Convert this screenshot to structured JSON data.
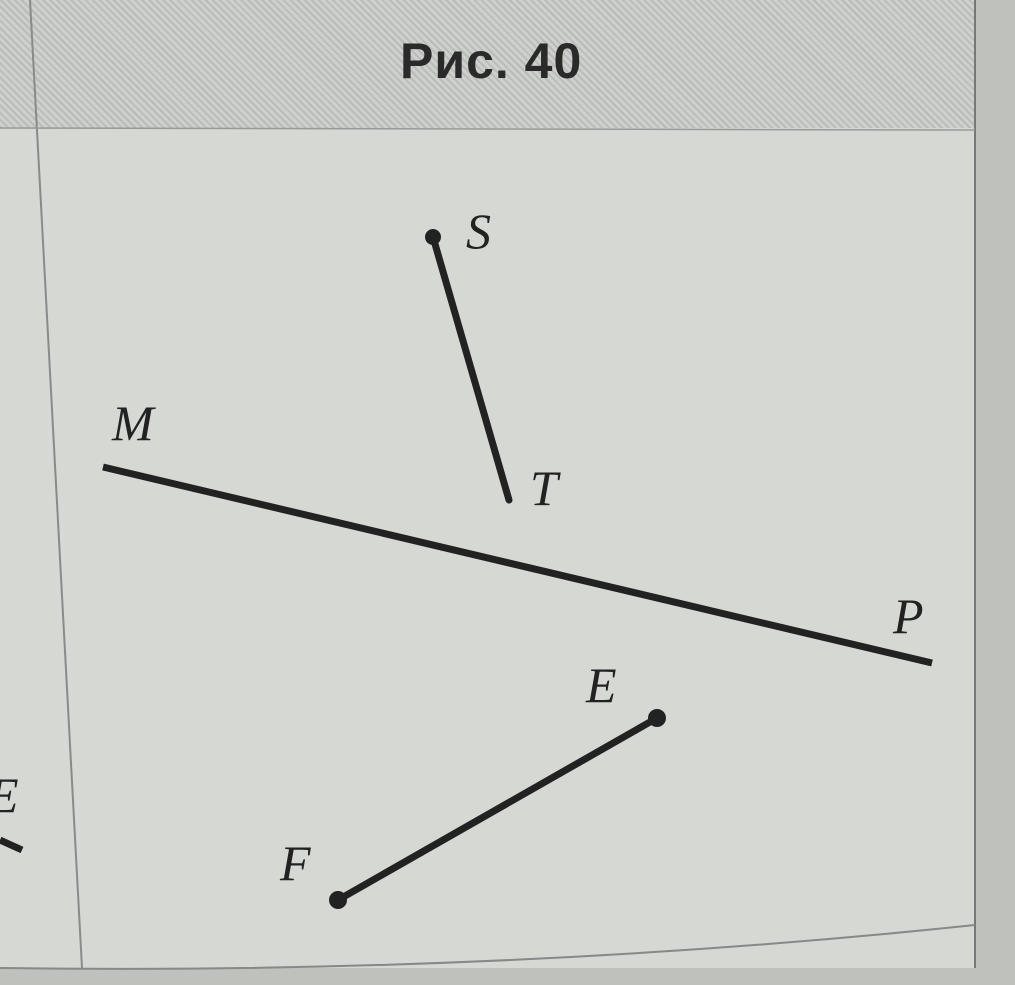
{
  "figure": {
    "title": "Рис. 40",
    "segments": [
      {
        "name": "ST",
        "from": "S",
        "to": "T",
        "endpoints_marked": true
      },
      {
        "name": "MP",
        "from": "M",
        "to": "P",
        "endpoints_marked": false
      },
      {
        "name": "EF",
        "from": "E",
        "to": "F",
        "endpoints_marked": true
      }
    ],
    "labels": {
      "S": "S",
      "T": "T",
      "M": "M",
      "P": "P",
      "E": "E",
      "F": "F"
    },
    "left_partial_label": "E"
  },
  "colors": {
    "ink": "#222222",
    "paper": "#d6d8d3",
    "header": "#c4c7c3"
  }
}
